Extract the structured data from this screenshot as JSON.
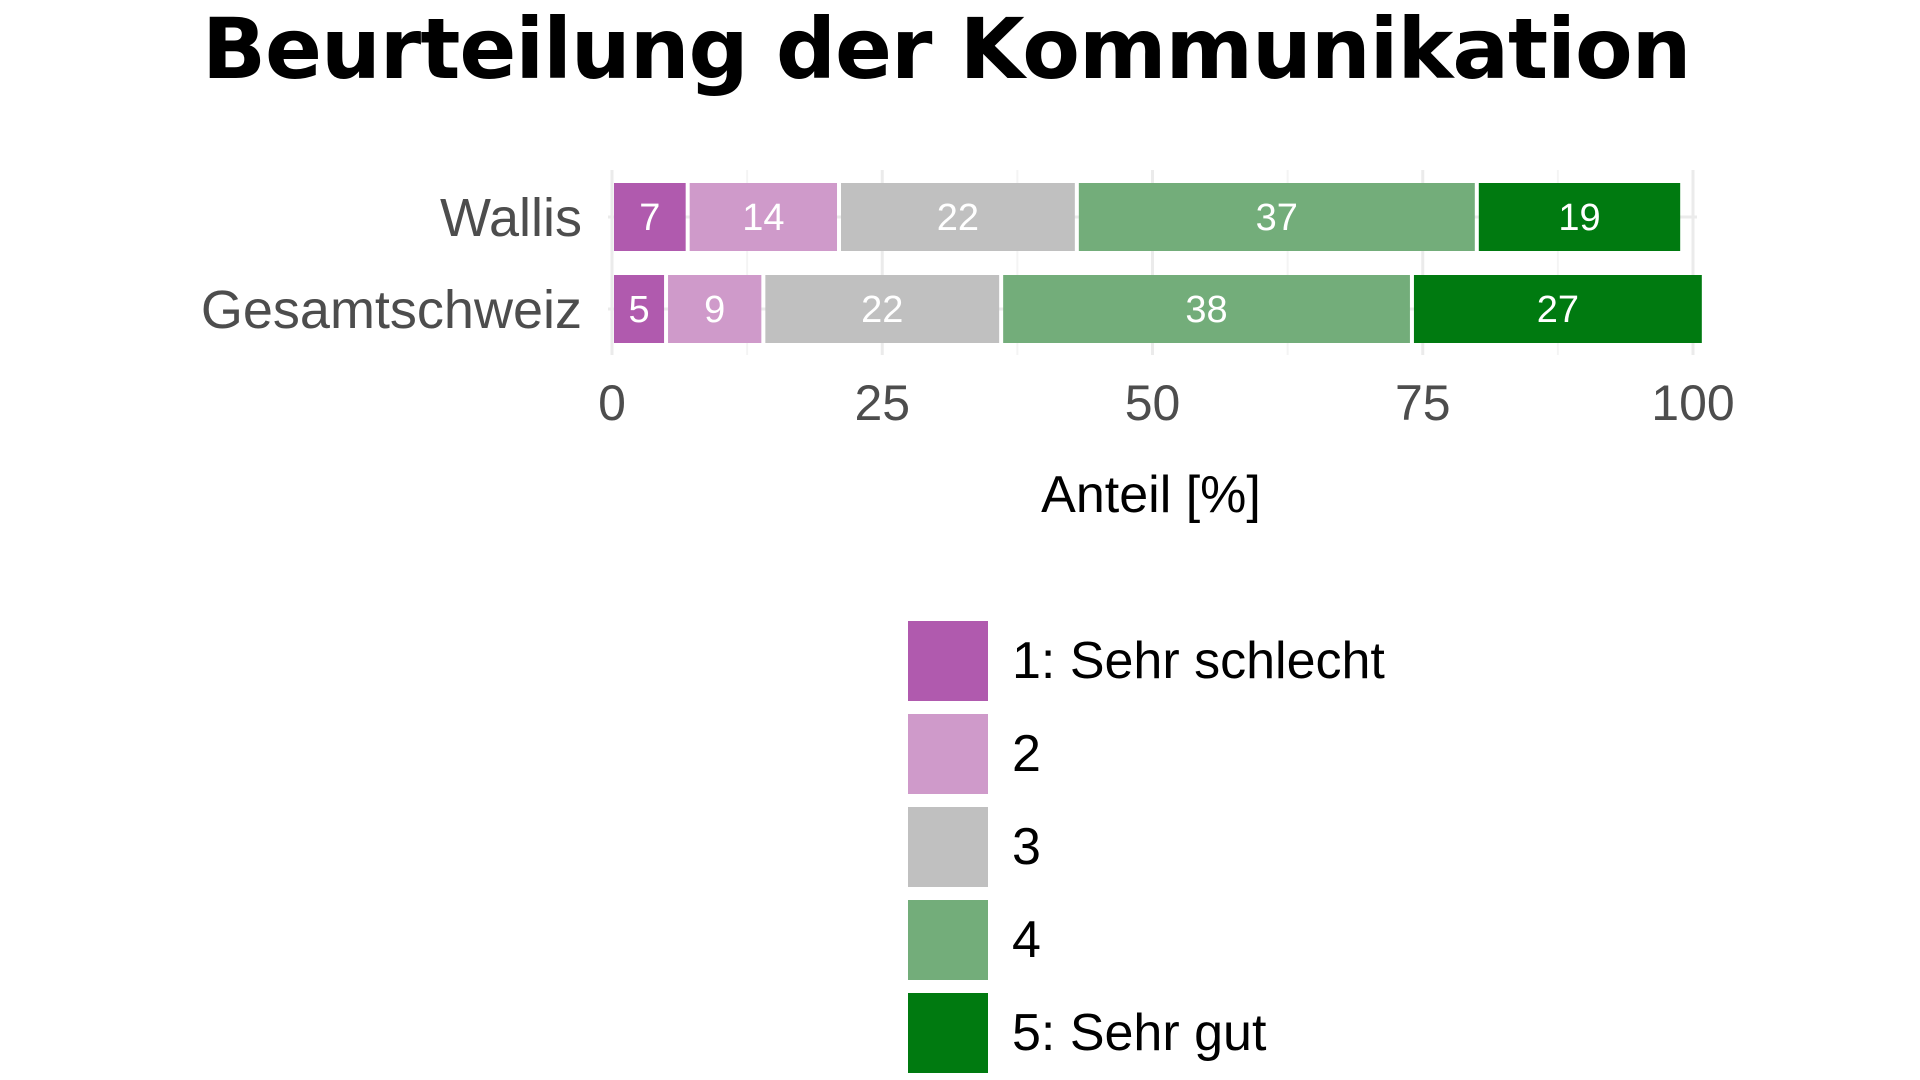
{
  "chart_data": {
    "type": "bar",
    "orientation": "horizontal",
    "stacked": true,
    "title": "Beurteilung der Kommunikation",
    "xlabel": "Anteil [%]",
    "ylabel": "",
    "xlim": [
      0,
      100
    ],
    "xticks": [
      0,
      25,
      50,
      75,
      100
    ],
    "categories": [
      "Wallis",
      "Gesamtschweiz"
    ],
    "series": [
      {
        "name": "1: Sehr schlecht",
        "color": "#b05aae",
        "values": [
          7,
          5
        ]
      },
      {
        "name": "2",
        "color": "#cf9aca",
        "values": [
          14,
          9
        ]
      },
      {
        "name": "3",
        "color": "#c0c0c0",
        "values": [
          22,
          22
        ]
      },
      {
        "name": "4",
        "color": "#73ad7a",
        "values": [
          37,
          38
        ]
      },
      {
        "name": "5: Sehr gut",
        "color": "#007a10",
        "values": [
          19,
          27
        ]
      }
    ],
    "grid": true,
    "legend_position": "bottom"
  }
}
